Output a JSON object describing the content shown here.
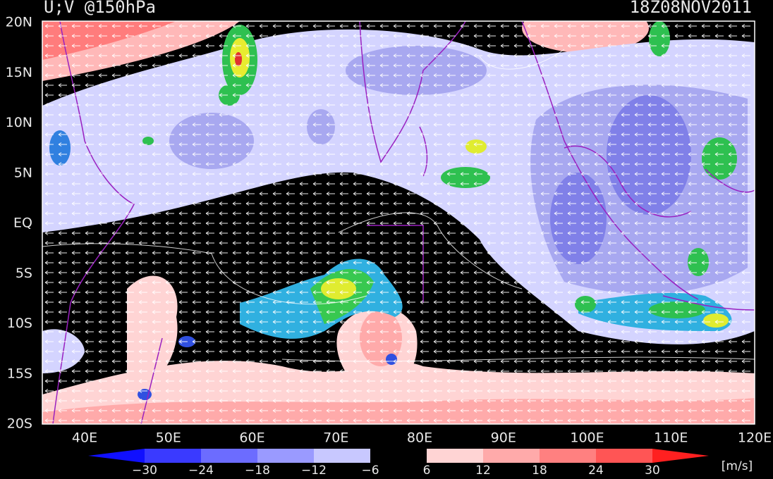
{
  "header": {
    "title": "U;V @150hPa",
    "time": "18Z08NOV2011"
  },
  "axes": {
    "lat_labels": [
      "20N",
      "15N",
      "10N",
      "5N",
      "EQ",
      "5S",
      "10S",
      "15S",
      "20S"
    ],
    "lon_labels": [
      "40E",
      "50E",
      "60E",
      "70E",
      "80E",
      "90E",
      "100E",
      "110E",
      "120E"
    ]
  },
  "colorbar": {
    "labels": [
      "−30",
      "−24",
      "−18",
      "−12",
      "−6",
      "6",
      "12",
      "18",
      "24",
      "30"
    ],
    "unit": "[m/s]"
  }
}
